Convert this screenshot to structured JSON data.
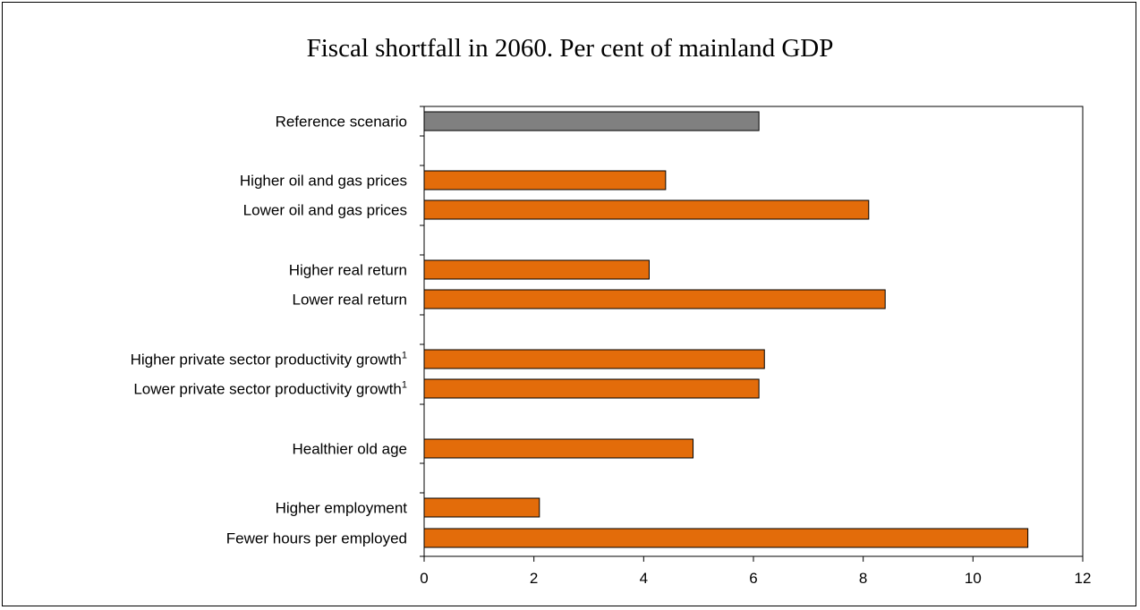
{
  "chart_data": {
    "type": "bar",
    "orientation": "horizontal",
    "title": "Fiscal shortfall in 2060. Per cent of mainland GDP",
    "xlabel": "",
    "ylabel": "",
    "xlim": [
      0,
      12
    ],
    "xticks": [
      0,
      2,
      4,
      6,
      8,
      10,
      12
    ],
    "grid": false,
    "legend": "none",
    "categories": [
      {
        "label": "Reference scenario",
        "sup": "",
        "value": 6.1,
        "color": "#808080"
      },
      {
        "label": "Higher oil and gas prices",
        "sup": "",
        "value": 4.4,
        "color": "#E36C0A"
      },
      {
        "label": "Lower oil and gas prices",
        "sup": "",
        "value": 8.1,
        "color": "#E36C0A"
      },
      {
        "label": "Higher real return",
        "sup": "",
        "value": 4.1,
        "color": "#E36C0A"
      },
      {
        "label": "Lower real return",
        "sup": "",
        "value": 8.4,
        "color": "#E36C0A"
      },
      {
        "label": "Higher private sector productivity growth",
        "sup": "1",
        "value": 6.2,
        "color": "#E36C0A"
      },
      {
        "label": "Lower private sector productivity growth",
        "sup": "1",
        "value": 6.1,
        "color": "#E36C0A"
      },
      {
        "label": "Healthier old age",
        "sup": "",
        "value": 4.9,
        "color": "#E36C0A"
      },
      {
        "label": "Higher employment",
        "sup": "",
        "value": 2.1,
        "color": "#E36C0A"
      },
      {
        "label": "Fewer hours per employed",
        "sup": "",
        "value": 11.0,
        "color": "#E36C0A"
      }
    ]
  }
}
